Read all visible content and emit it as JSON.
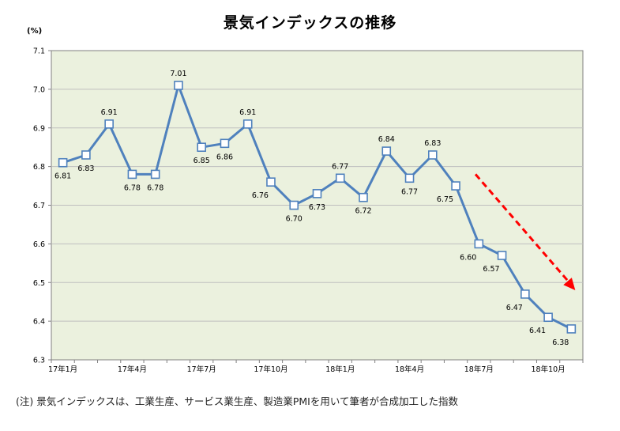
{
  "chart_data": {
    "type": "line",
    "title": "景気インデックスの推移",
    "ylabel": "(%)",
    "ylim": [
      6.3,
      7.1
    ],
    "yticks": [
      "7.1",
      "7.0",
      "6.9",
      "6.8",
      "6.7",
      "6.6",
      "6.5",
      "6.4",
      "6.3"
    ],
    "xtick_labels": [
      "17年1月",
      "17年4月",
      "17年7月",
      "17年10月",
      "18年1月",
      "18年4月",
      "18年7月",
      "18年10月"
    ],
    "x": [
      "2017-01",
      "2017-02",
      "2017-03",
      "2017-04",
      "2017-05",
      "2017-06",
      "2017-07",
      "2017-08",
      "2017-09",
      "2017-10",
      "2017-11",
      "2017-12",
      "2018-01",
      "2018-02",
      "2018-03",
      "2018-04",
      "2018-05",
      "2018-06",
      "2018-07",
      "2018-08",
      "2018-09",
      "2018-10",
      "2018-11"
    ],
    "series": [
      {
        "values": [
          6.81,
          6.83,
          6.91,
          6.78,
          6.78,
          7.01,
          6.85,
          6.86,
          6.91,
          6.76,
          6.7,
          6.73,
          6.77,
          6.72,
          6.84,
          6.77,
          6.83,
          6.75,
          6.6,
          6.57,
          6.47,
          6.41,
          6.38
        ],
        "labels": [
          "6.81",
          "6.83",
          "6.91",
          "6.78",
          "6.78",
          "7.01",
          "6.85",
          "6.86",
          "6.91",
          "6.76",
          "6.70",
          "6.73",
          "6.77",
          "6.72",
          "6.84",
          "6.77",
          "6.83",
          "6.75",
          "6.60",
          "6.57",
          "6.47",
          "6.41",
          "6.38"
        ]
      }
    ],
    "annotation": "downward-trend-arrow",
    "grid": true,
    "colors": {
      "plot_bg": "#ebf1de",
      "line": "#4f81bd",
      "grid": "#bfbfbf",
      "arrow": "#ff0000"
    }
  },
  "note": "(注) 景気インデックスは、工業生産、サービス業生産、製造業PMIを用いて筆者が合成加工した指数"
}
